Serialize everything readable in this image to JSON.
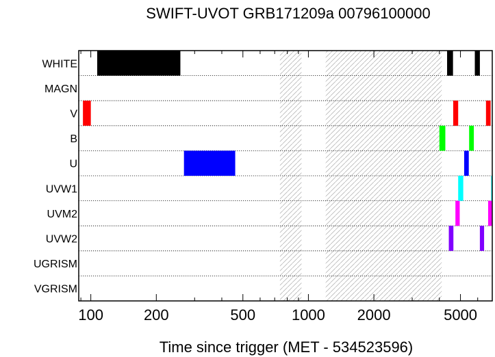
{
  "chart_data": {
    "type": "timeline",
    "title": "SWIFT-UVOT GRB171209a 00796100000",
    "xlabel": "Time since trigger (MET - 534523596)",
    "ylabel": "",
    "x_scale": "log",
    "xlim": [
      88,
      7000
    ],
    "x_ticks": [
      {
        "value": 100,
        "label": "100"
      },
      {
        "value": 200,
        "label": "200"
      },
      {
        "value": 500,
        "label": "500"
      },
      {
        "value": 1000,
        "label": "1000"
      },
      {
        "value": 2000,
        "label": "2000"
      },
      {
        "value": 5000,
        "label": "5000"
      }
    ],
    "rows": [
      "WHITE",
      "MAGN",
      "V",
      "B",
      "U",
      "UVW1",
      "UVM2",
      "UVW2",
      "UGRISM",
      "VGRISM"
    ],
    "row_separator": "dotted",
    "hatched_intervals": [
      {
        "start": 740,
        "end": 930
      },
      {
        "start": 1200,
        "end": 4100
      }
    ],
    "exposures": [
      {
        "filter": "WHITE",
        "start": 107,
        "end": 258,
        "color": "#000000"
      },
      {
        "filter": "WHITE",
        "start": 4340,
        "end": 4620,
        "color": "#000000"
      },
      {
        "filter": "WHITE",
        "start": 5820,
        "end": 6140,
        "color": "#000000"
      },
      {
        "filter": "V",
        "start": 92,
        "end": 100,
        "color": "#ff0000"
      },
      {
        "filter": "V",
        "start": 4630,
        "end": 4880,
        "color": "#ff0000"
      },
      {
        "filter": "V",
        "start": 6550,
        "end": 6880,
        "color": "#ff0000"
      },
      {
        "filter": "B",
        "start": 4000,
        "end": 4260,
        "color": "#00ff00"
      },
      {
        "filter": "B",
        "start": 5480,
        "end": 5760,
        "color": "#00ff00"
      },
      {
        "filter": "U",
        "start": 268,
        "end": 461,
        "color": "#0000ff"
      },
      {
        "filter": "U",
        "start": 5200,
        "end": 5460,
        "color": "#0000ff"
      },
      {
        "filter": "UVW1",
        "start": 4880,
        "end": 5150,
        "color": "#00ffff"
      },
      {
        "filter": "UVW1",
        "start": 6920,
        "end": 7000,
        "color": "#00ffff"
      },
      {
        "filter": "UVM2",
        "start": 4740,
        "end": 4960,
        "color": "#ff00ff"
      },
      {
        "filter": "UVM2",
        "start": 6700,
        "end": 6970,
        "color": "#ff00ff"
      },
      {
        "filter": "UVW2",
        "start": 4420,
        "end": 4640,
        "color": "#8000ff"
      },
      {
        "filter": "UVW2",
        "start": 6140,
        "end": 6420,
        "color": "#8000ff"
      }
    ]
  }
}
